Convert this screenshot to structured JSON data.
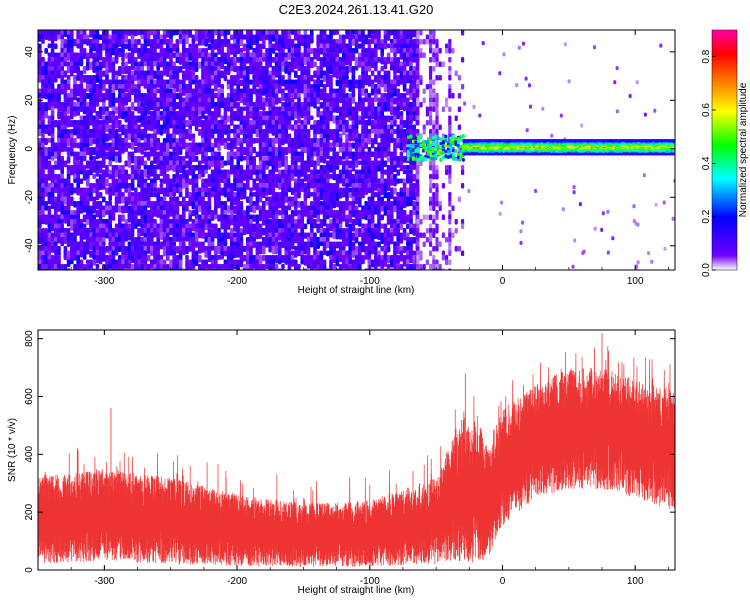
{
  "figure": {
    "title": "C2E3.2024.261.13.41.G20"
  },
  "chart_data": [
    {
      "type": "heatmap",
      "name": "spectrogram",
      "xlabel": "Height of straight line (km)",
      "ylabel": "Frequency (Hz)",
      "xlim": [
        -350,
        130
      ],
      "ylim": [
        -50,
        49
      ],
      "xticks": [
        -300,
        -200,
        -100,
        0,
        100
      ],
      "yticks": [
        -40,
        -20,
        0,
        20,
        40
      ],
      "colorbar": {
        "label": "Normalized spectral amplitude",
        "range": [
          0.0,
          0.9
        ],
        "ticks": [
          "0.0",
          "0.2",
          "0.4",
          "0.6",
          "0.8"
        ],
        "colormap": [
          "#ffffff",
          "#7000ff",
          "#0000ff",
          "#00ffff",
          "#00ff00",
          "#ffff00",
          "#ff8000",
          "#ff0000",
          "#ff00aa"
        ]
      },
      "regions": [
        {
          "description": "broadband noise",
          "x_range": [
            -350,
            -65
          ],
          "freq_range": [
            -50,
            49
          ],
          "amplitude": 0.08
        },
        {
          "description": "transition",
          "x_range": [
            -65,
            -30
          ],
          "freq_range": [
            -50,
            49
          ],
          "amplitude": 0.05
        },
        {
          "description": "signal band",
          "x_range": [
            -30,
            130
          ],
          "freq_center": 1,
          "freq_halfwidth": 3,
          "amplitude": 0.7
        }
      ],
      "grid": false
    },
    {
      "type": "line",
      "name": "snr",
      "xlabel": "Height of straight line (km)",
      "ylabel": "SNR (10 * v/v)",
      "xlim": [
        -350,
        130
      ],
      "ylim": [
        0,
        830
      ],
      "xticks": [
        -300,
        -200,
        -100,
        0,
        100
      ],
      "yticks": [
        0,
        200,
        400,
        600,
        800
      ],
      "color": "#ee3333",
      "envelope": [
        {
          "x": -350,
          "low": 20,
          "high": 320
        },
        {
          "x": -300,
          "low": 30,
          "high": 350
        },
        {
          "x": -250,
          "low": 20,
          "high": 320
        },
        {
          "x": -200,
          "low": 15,
          "high": 260
        },
        {
          "x": -150,
          "low": 10,
          "high": 230
        },
        {
          "x": -100,
          "low": 10,
          "high": 240
        },
        {
          "x": -50,
          "low": 20,
          "high": 320
        },
        {
          "x": -35,
          "low": 30,
          "high": 480
        },
        {
          "x": -20,
          "low": 10,
          "high": 520
        },
        {
          "x": -10,
          "low": 50,
          "high": 430
        },
        {
          "x": 0,
          "low": 150,
          "high": 560
        },
        {
          "x": 25,
          "low": 250,
          "high": 640
        },
        {
          "x": 50,
          "low": 280,
          "high": 700
        },
        {
          "x": 75,
          "low": 280,
          "high": 700
        },
        {
          "x": 100,
          "low": 250,
          "high": 660
        },
        {
          "x": 130,
          "low": 200,
          "high": 620
        }
      ],
      "peaks": [
        {
          "x": -295,
          "y": 560
        },
        {
          "x": 75,
          "y": 820
        },
        {
          "x": -28,
          "y": 680
        }
      ],
      "grid": false
    }
  ]
}
